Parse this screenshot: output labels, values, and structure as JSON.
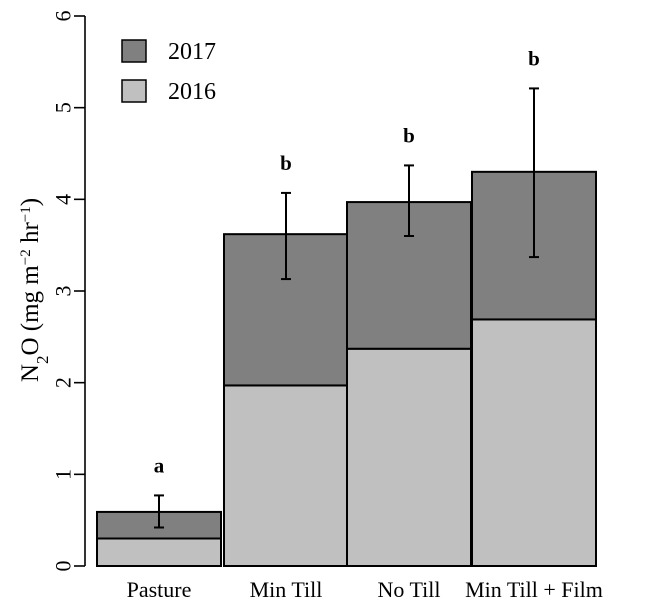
{
  "chart_data": {
    "type": "bar",
    "stacked": true,
    "categories": [
      "Pasture",
      "Min Till",
      "No Till",
      "Min Till + Film"
    ],
    "series": [
      {
        "name": "2016",
        "values": [
          0.3,
          1.97,
          2.37,
          2.69
        ],
        "color": "#c0c0c0"
      },
      {
        "name": "2017",
        "values": [
          0.29,
          1.65,
          1.6,
          1.61
        ],
        "color": "#808080"
      }
    ],
    "totals": [
      0.59,
      3.62,
      3.97,
      4.3
    ],
    "error_bars": {
      "lower": [
        0.42,
        3.13,
        3.6,
        3.37
      ],
      "upper": [
        0.77,
        4.07,
        4.37,
        5.21
      ]
    },
    "significance_letters": [
      "a",
      "b",
      "b",
      "b"
    ],
    "ylim": [
      0,
      6
    ],
    "yticks": [
      "0",
      "1",
      "2",
      "3",
      "4",
      "5",
      "6"
    ],
    "ylabel": {
      "main": "N",
      "sub": "2",
      "mid": "O (mg m",
      "sup1": "−2",
      "mid2": " hr",
      "sup2": "−1",
      "end": ")"
    },
    "legend": {
      "position": "top-left",
      "entries": [
        "2017",
        "2016"
      ]
    },
    "grid": false
  }
}
